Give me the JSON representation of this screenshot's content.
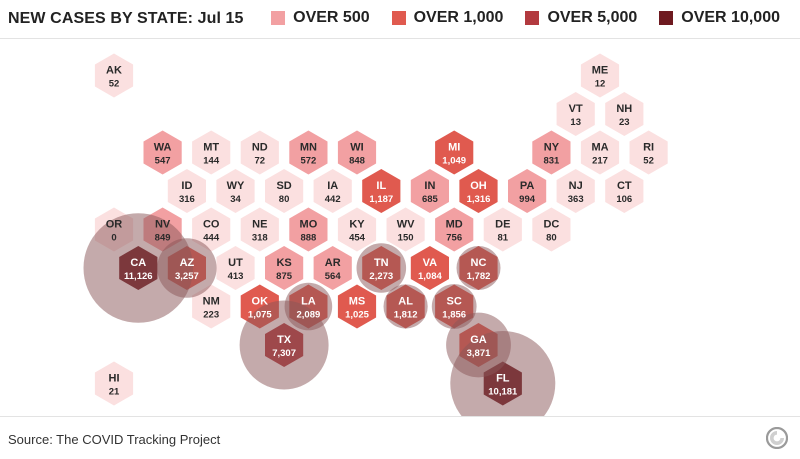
{
  "title": "NEW CASES BY STATE: Jul 15",
  "legend": [
    {
      "label": "OVER 500",
      "color": "#f2a0a2"
    },
    {
      "label": "OVER 1,000",
      "color": "#e05a4f"
    },
    {
      "label": "OVER 5,000",
      "color": "#b23a3f"
    },
    {
      "label": "OVER 10,000",
      "color": "#6e1a20"
    }
  ],
  "base_color": "#fbe0e0",
  "circle_color": "#8a5658",
  "source": "Source: The COVID Tracking Project",
  "logo_icon": "covid-tracking-logo-icon",
  "states": [
    {
      "abbr": "AK",
      "value": "52",
      "col": 0,
      "row": 0,
      "bin": 0
    },
    {
      "abbr": "ME",
      "value": "12",
      "col": 10,
      "row": 0,
      "bin": 0
    },
    {
      "abbr": "VT",
      "value": "13",
      "col": 9,
      "row": 1,
      "bin": 0
    },
    {
      "abbr": "NH",
      "value": "23",
      "col": 10,
      "row": 1,
      "bin": 0
    },
    {
      "abbr": "WA",
      "value": "547",
      "col": 1,
      "row": 2,
      "bin": 1
    },
    {
      "abbr": "MT",
      "value": "144",
      "col": 2,
      "row": 2,
      "bin": 0
    },
    {
      "abbr": "ND",
      "value": "72",
      "col": 3,
      "row": 2,
      "bin": 0
    },
    {
      "abbr": "MN",
      "value": "572",
      "col": 4,
      "row": 2,
      "bin": 1
    },
    {
      "abbr": "WI",
      "value": "848",
      "col": 5,
      "row": 2,
      "bin": 1
    },
    {
      "abbr": "MI",
      "value": "1,049",
      "col": 7,
      "row": 2,
      "bin": 2
    },
    {
      "abbr": "NY",
      "value": "831",
      "col": 9,
      "row": 2,
      "bin": 1
    },
    {
      "abbr": "MA",
      "value": "217",
      "col": 10,
      "row": 2,
      "bin": 0
    },
    {
      "abbr": "RI",
      "value": "52",
      "col": 11,
      "row": 2,
      "bin": 0
    },
    {
      "abbr": "ID",
      "value": "316",
      "col": 1,
      "row": 3,
      "bin": 0
    },
    {
      "abbr": "WY",
      "value": "34",
      "col": 2,
      "row": 3,
      "bin": 0
    },
    {
      "abbr": "SD",
      "value": "80",
      "col": 3,
      "row": 3,
      "bin": 0
    },
    {
      "abbr": "IA",
      "value": "442",
      "col": 4,
      "row": 3,
      "bin": 0
    },
    {
      "abbr": "IL",
      "value": "1,187",
      "col": 5,
      "row": 3,
      "bin": 2
    },
    {
      "abbr": "IN",
      "value": "685",
      "col": 6,
      "row": 3,
      "bin": 1
    },
    {
      "abbr": "OH",
      "value": "1,316",
      "col": 7,
      "row": 3,
      "bin": 2
    },
    {
      "abbr": "PA",
      "value": "994",
      "col": 8,
      "row": 3,
      "bin": 1
    },
    {
      "abbr": "NJ",
      "value": "363",
      "col": 9,
      "row": 3,
      "bin": 0
    },
    {
      "abbr": "CT",
      "value": "106",
      "col": 10,
      "row": 3,
      "bin": 0
    },
    {
      "abbr": "OR",
      "value": "0",
      "col": 0,
      "row": 4,
      "bin": 0
    },
    {
      "abbr": "NV",
      "value": "849",
      "col": 1,
      "row": 4,
      "bin": 1
    },
    {
      "abbr": "CO",
      "value": "444",
      "col": 2,
      "row": 4,
      "bin": 0
    },
    {
      "abbr": "NE",
      "value": "318",
      "col": 3,
      "row": 4,
      "bin": 0
    },
    {
      "abbr": "MO",
      "value": "888",
      "col": 4,
      "row": 4,
      "bin": 1
    },
    {
      "abbr": "KY",
      "value": "454",
      "col": 5,
      "row": 4,
      "bin": 0
    },
    {
      "abbr": "WV",
      "value": "150",
      "col": 6,
      "row": 4,
      "bin": 0
    },
    {
      "abbr": "MD",
      "value": "756",
      "col": 7,
      "row": 4,
      "bin": 1
    },
    {
      "abbr": "DE",
      "value": "81",
      "col": 8,
      "row": 4,
      "bin": 0
    },
    {
      "abbr": "DC",
      "value": "80",
      "col": 9,
      "row": 4,
      "bin": 0
    },
    {
      "abbr": "CA",
      "value": "11,126",
      "col": 0,
      "row": 5,
      "bin": 4
    },
    {
      "abbr": "AZ",
      "value": "3,257",
      "col": 1,
      "row": 5,
      "bin": 2
    },
    {
      "abbr": "UT",
      "value": "413",
      "col": 2,
      "row": 5,
      "bin": 0
    },
    {
      "abbr": "KS",
      "value": "875",
      "col": 3,
      "row": 5,
      "bin": 1
    },
    {
      "abbr": "AR",
      "value": "564",
      "col": 4,
      "row": 5,
      "bin": 1
    },
    {
      "abbr": "TN",
      "value": "2,273",
      "col": 5,
      "row": 5,
      "bin": 2
    },
    {
      "abbr": "VA",
      "value": "1,084",
      "col": 6,
      "row": 5,
      "bin": 2
    },
    {
      "abbr": "NC",
      "value": "1,782",
      "col": 7,
      "row": 5,
      "bin": 2
    },
    {
      "abbr": "NM",
      "value": "223",
      "col": 2,
      "row": 6,
      "bin": 0
    },
    {
      "abbr": "OK",
      "value": "1,075",
      "col": 3,
      "row": 6,
      "bin": 2
    },
    {
      "abbr": "LA",
      "value": "2,089",
      "col": 4,
      "row": 6,
      "bin": 2
    },
    {
      "abbr": "MS",
      "value": "1,025",
      "col": 5,
      "row": 6,
      "bin": 2
    },
    {
      "abbr": "AL",
      "value": "1,812",
      "col": 6,
      "row": 6,
      "bin": 2
    },
    {
      "abbr": "SC",
      "value": "1,856",
      "col": 7,
      "row": 6,
      "bin": 2
    },
    {
      "abbr": "TX",
      "value": "7,307",
      "col": 3,
      "row": 7,
      "bin": 3
    },
    {
      "abbr": "GA",
      "value": "3,871",
      "col": 7,
      "row": 7,
      "bin": 2
    },
    {
      "abbr": "HI",
      "value": "21",
      "col": 0,
      "row": 8,
      "bin": 0
    },
    {
      "abbr": "FL",
      "value": "10,181",
      "col": 8,
      "row": 8,
      "bin": 4
    }
  ],
  "circles": [
    {
      "state": "CA",
      "cases": 11126
    },
    {
      "state": "TX",
      "cases": 7307
    },
    {
      "state": "FL",
      "cases": 10181
    },
    {
      "state": "AZ",
      "cases": 3257
    },
    {
      "state": "GA",
      "cases": 3871
    },
    {
      "state": "TN",
      "cases": 2273
    },
    {
      "state": "LA",
      "cases": 2089
    },
    {
      "state": "SC",
      "cases": 1856
    },
    {
      "state": "AL",
      "cases": 1812
    },
    {
      "state": "NC",
      "cases": 1782
    }
  ]
}
